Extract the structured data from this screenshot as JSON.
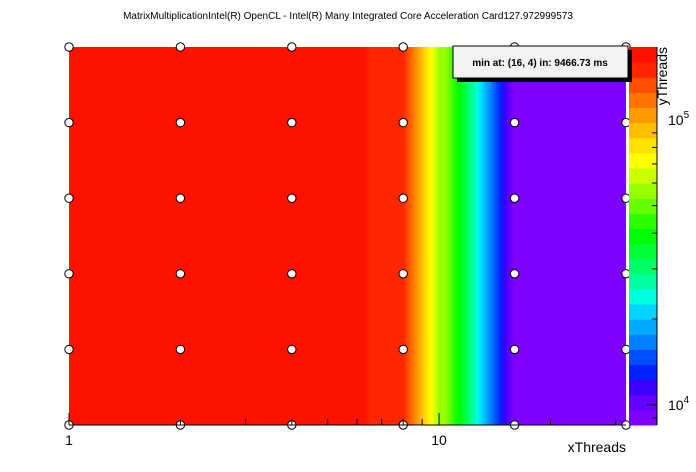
{
  "chart_data": {
    "type": "heatmap",
    "title": "MatrixMultiplicationIntel(R) OpenCL - Intel(R) Many Integrated Core Acceleration Card127.972999573",
    "xlabel": "xThreads",
    "ylabel": "yThreads",
    "x_scale": "log2",
    "y_scale": "log2",
    "x_tick_labels": [
      "1",
      "10"
    ],
    "x_points": [
      1,
      2,
      4,
      8,
      16,
      32
    ],
    "y_points": [
      1,
      2,
      4,
      8,
      16,
      32
    ],
    "z_scale": "log",
    "z_range": [
      8500,
      180000
    ],
    "z_tick_labels": [
      {
        "base": "10",
        "exp": "4",
        "value": 10000
      },
      {
        "base": "10",
        "exp": "5",
        "value": 100000
      }
    ],
    "color_levels": [
      "#7f00ff",
      "#6600ff",
      "#3c00ff",
      "#0022ff",
      "#004cff",
      "#0080ff",
      "#00aaff",
      "#00d4ff",
      "#00ffe0",
      "#00ffa0",
      "#00ff66",
      "#00ff33",
      "#00ff00",
      "#2bff00",
      "#66ff00",
      "#99ff00",
      "#ccff00",
      "#ffff00",
      "#ffe000",
      "#ffbf00",
      "#ff9900",
      "#ff7300",
      "#ff4d00",
      "#ff2600",
      "#ff1100"
    ],
    "columns": [
      {
        "x": 1,
        "value": 180000
      },
      {
        "x": 2,
        "value": 180000
      },
      {
        "x": 4,
        "value": 180000
      },
      {
        "x": 8,
        "value": 150000
      },
      {
        "x": 16,
        "value": 9466.73
      },
      {
        "x": 32,
        "value": 9500
      }
    ],
    "annotation": {
      "text": "min at: (16, 4) in: 9466.73 ms",
      "min_x": 16,
      "min_y": 4,
      "min_value_ms": 9466.73
    }
  }
}
